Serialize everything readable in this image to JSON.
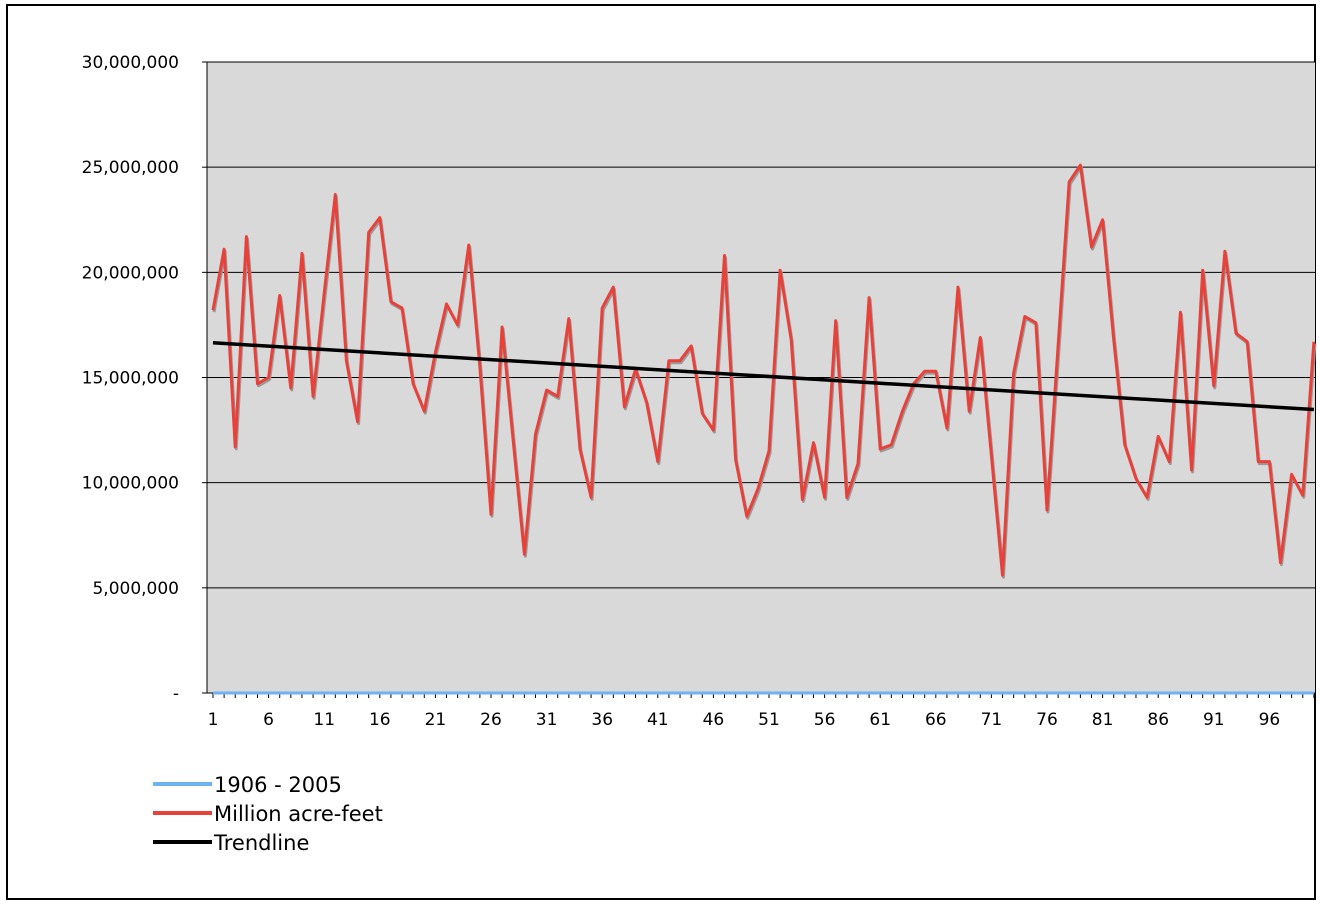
{
  "chart_data": {
    "type": "line",
    "title": "",
    "xlabel": "",
    "ylabel": "",
    "ylim": [
      0,
      30000000
    ],
    "y_ticks": [
      {
        "value": 0,
        "label": "-"
      },
      {
        "value": 5000000,
        "label": "5,000,000"
      },
      {
        "value": 10000000,
        "label": "10,000,000"
      },
      {
        "value": 15000000,
        "label": "15,000,000"
      },
      {
        "value": 20000000,
        "label": "20,000,000"
      },
      {
        "value": 25000000,
        "label": "25,000,000"
      },
      {
        "value": 30000000,
        "label": "30,000,000"
      }
    ],
    "x_tick_labels": [
      "1",
      "6",
      "11",
      "16",
      "21",
      "26",
      "31",
      "36",
      "41",
      "46",
      "51",
      "56",
      "61",
      "66",
      "71",
      "76",
      "81",
      "86",
      "91",
      "96"
    ],
    "x_count": 100,
    "grid": true,
    "plot_background": "#d9d9d9",
    "legend_position": "bottom-left",
    "series": [
      {
        "name": "1906 - 2005",
        "color": "#6fb2f4",
        "values": [
          0,
          0,
          0,
          0,
          0,
          0,
          0,
          0,
          0,
          0,
          0,
          0,
          0,
          0,
          0,
          0,
          0,
          0,
          0,
          0,
          0,
          0,
          0,
          0,
          0,
          0,
          0,
          0,
          0,
          0,
          0,
          0,
          0,
          0,
          0,
          0,
          0,
          0,
          0,
          0,
          0,
          0,
          0,
          0,
          0,
          0,
          0,
          0,
          0,
          0,
          0,
          0,
          0,
          0,
          0,
          0,
          0,
          0,
          0,
          0,
          0,
          0,
          0,
          0,
          0,
          0,
          0,
          0,
          0,
          0,
          0,
          0,
          0,
          0,
          0,
          0,
          0,
          0,
          0,
          0,
          0,
          0,
          0,
          0,
          0,
          0,
          0,
          0,
          0,
          0,
          0,
          0,
          0,
          0,
          0,
          0,
          0,
          0,
          0,
          0
        ]
      },
      {
        "name": "Million acre-feet",
        "color": "#e8413a",
        "values": [
          18200000,
          21100000,
          11700000,
          21700000,
          14700000,
          15000000,
          18900000,
          14500000,
          20900000,
          14100000,
          19000000,
          23700000,
          15800000,
          12900000,
          21900000,
          22600000,
          18600000,
          18300000,
          14700000,
          13400000,
          16200000,
          18500000,
          17500000,
          21300000,
          15500000,
          8500000,
          17400000,
          12000000,
          6600000,
          12300000,
          14400000,
          14100000,
          17800000,
          11600000,
          9300000,
          18300000,
          19300000,
          13600000,
          15400000,
          13800000,
          11000000,
          15800000,
          15800000,
          16500000,
          13300000,
          12500000,
          20800000,
          11100000,
          8400000,
          9700000,
          11500000,
          20100000,
          16800000,
          9200000,
          11900000,
          9300000,
          17700000,
          9300000,
          10900000,
          18800000,
          11600000,
          11800000,
          13400000,
          14700000,
          15300000,
          15300000,
          12600000,
          19300000,
          13400000,
          16900000,
          11300000,
          5600000,
          15200000,
          17900000,
          17600000,
          8700000,
          16500000,
          24300000,
          25100000,
          21200000,
          22500000,
          16800000,
          11800000,
          10200000,
          9300000,
          12200000,
          11000000,
          18100000,
          10600000,
          20100000,
          14600000,
          21000000,
          17100000,
          16700000,
          11000000,
          11000000,
          6200000,
          10400000,
          9400000,
          16700000
        ]
      },
      {
        "name": "Trendline",
        "color": "#000000",
        "values": [
          16650000,
          13480000
        ]
      }
    ]
  }
}
